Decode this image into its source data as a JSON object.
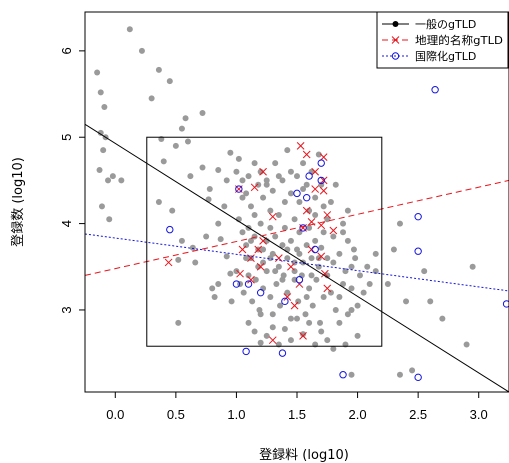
{
  "chart_data": {
    "type": "scatter",
    "title": "",
    "xlabel": "登録料 (log10)",
    "ylabel": "登録数 (log10)",
    "xlim": [
      -0.25,
      3.25
    ],
    "ylim": [
      2.05,
      6.45
    ],
    "x_ticks": [
      0.0,
      0.5,
      1.0,
      1.5,
      2.0,
      2.5,
      3.0
    ],
    "x_tick_labels": [
      "0.0",
      "0.5",
      "1.0",
      "1.5",
      "2.0",
      "2.5",
      "3.0"
    ],
    "y_ticks": [
      3,
      4,
      5,
      6
    ],
    "y_tick_labels": [
      "3",
      "4",
      "5",
      "6"
    ],
    "grid": false,
    "legend_position": "top-right",
    "legend": [
      {
        "label": "一般のgTLD",
        "marker": "filled-circle",
        "line": "solid",
        "color": "#000000"
      },
      {
        "label": "地理的名称gTLD",
        "marker": "x",
        "line": "dashed",
        "color": "#e8141c"
      },
      {
        "label": "国際化gTLD",
        "marker": "open-circle",
        "line": "dotted",
        "color": "#1414e0"
      }
    ],
    "highlight_box": {
      "x": [
        0.26,
        2.2
      ],
      "y": [
        2.58,
        5.0
      ]
    },
    "series": [
      {
        "name": "一般のgTLD",
        "marker": "filled-circle",
        "color": "#9a9a9a",
        "points": [
          [
            -0.15,
            5.75
          ],
          [
            -0.12,
            5.52
          ],
          [
            -0.09,
            5.35
          ],
          [
            -0.12,
            5.05
          ],
          [
            -0.08,
            5.0
          ],
          [
            -0.1,
            4.85
          ],
          [
            -0.13,
            4.62
          ],
          [
            -0.06,
            4.5
          ],
          [
            -0.02,
            4.55
          ],
          [
            0.05,
            4.5
          ],
          [
            -0.11,
            4.2
          ],
          [
            -0.05,
            4.05
          ],
          [
            0.12,
            6.25
          ],
          [
            0.22,
            6.0
          ],
          [
            0.36,
            5.78
          ],
          [
            0.45,
            5.65
          ],
          [
            0.3,
            5.45
          ],
          [
            0.55,
            5.1
          ],
          [
            0.6,
            4.95
          ],
          [
            0.62,
            4.55
          ],
          [
            0.4,
            4.72
          ],
          [
            0.5,
            4.9
          ],
          [
            0.38,
            4.98
          ],
          [
            0.36,
            4.25
          ],
          [
            0.47,
            4.15
          ],
          [
            0.55,
            3.8
          ],
          [
            0.52,
            3.58
          ],
          [
            0.66,
            3.55
          ],
          [
            0.77,
            4.28
          ],
          [
            0.85,
            4.62
          ],
          [
            0.78,
            4.4
          ],
          [
            0.72,
            4.65
          ],
          [
            0.95,
            4.82
          ],
          [
            0.92,
            4.5
          ],
          [
            0.9,
            4.2
          ],
          [
            0.85,
            4.0
          ],
          [
            0.87,
            3.82
          ],
          [
            0.92,
            3.62
          ],
          [
            0.95,
            3.42
          ],
          [
            0.8,
            3.25
          ],
          [
            0.82,
            3.15
          ],
          [
            0.75,
            3.85
          ],
          [
            0.64,
            3.72
          ],
          [
            0.72,
            5.28
          ],
          [
            0.58,
            5.22
          ],
          [
            0.52,
            2.85
          ],
          [
            0.96,
            3.1
          ],
          [
            0.85,
            3.3
          ],
          [
            1.0,
            4.6
          ],
          [
            1.02,
            4.75
          ],
          [
            1.05,
            4.5
          ],
          [
            1.08,
            4.35
          ],
          [
            1.1,
            4.55
          ],
          [
            1.12,
            4.2
          ],
          [
            1.15,
            4.7
          ],
          [
            1.18,
            4.45
          ],
          [
            1.2,
            4.6
          ],
          [
            1.22,
            4.3
          ],
          [
            1.25,
            4.5
          ],
          [
            1.28,
            4.15
          ],
          [
            1.3,
            4.38
          ],
          [
            1.32,
            4.7
          ],
          [
            1.35,
            4.1
          ],
          [
            1.38,
            4.5
          ],
          [
            1.4,
            4.25
          ],
          [
            1.42,
            4.85
          ],
          [
            1.45,
            4.35
          ],
          [
            1.48,
            4.05
          ],
          [
            1.5,
            4.55
          ],
          [
            1.52,
            4.25
          ],
          [
            1.55,
            4.7
          ],
          [
            1.58,
            4.45
          ],
          [
            1.6,
            4.15
          ],
          [
            1.62,
            4.6
          ],
          [
            1.65,
            4.3
          ],
          [
            1.68,
            4.8
          ],
          [
            1.7,
            4.45
          ],
          [
            1.72,
            4.2
          ],
          [
            1.02,
            4.05
          ],
          [
            1.05,
            3.9
          ],
          [
            1.08,
            3.75
          ],
          [
            1.1,
            3.95
          ],
          [
            1.12,
            3.6
          ],
          [
            1.15,
            3.85
          ],
          [
            1.18,
            3.7
          ],
          [
            1.2,
            4.0
          ],
          [
            1.22,
            3.55
          ],
          [
            1.25,
            3.8
          ],
          [
            1.28,
            3.95
          ],
          [
            1.3,
            3.65
          ],
          [
            1.32,
            3.85
          ],
          [
            1.35,
            3.5
          ],
          [
            1.38,
            3.75
          ],
          [
            1.4,
            3.95
          ],
          [
            1.42,
            3.6
          ],
          [
            1.45,
            3.8
          ],
          [
            1.48,
            3.45
          ],
          [
            1.5,
            3.7
          ],
          [
            1.52,
            3.9
          ],
          [
            1.55,
            3.55
          ],
          [
            1.58,
            3.75
          ],
          [
            1.6,
            3.95
          ],
          [
            1.62,
            3.6
          ],
          [
            1.65,
            3.8
          ],
          [
            1.68,
            3.5
          ],
          [
            1.7,
            3.72
          ],
          [
            1.72,
            3.9
          ],
          [
            1.75,
            3.6
          ],
          [
            1.0,
            3.45
          ],
          [
            1.03,
            3.3
          ],
          [
            1.06,
            3.2
          ],
          [
            1.1,
            3.4
          ],
          [
            1.13,
            3.1
          ],
          [
            1.16,
            3.35
          ],
          [
            1.19,
            3.0
          ],
          [
            1.22,
            3.25
          ],
          [
            1.25,
            3.45
          ],
          [
            1.28,
            3.15
          ],
          [
            1.3,
            2.95
          ],
          [
            1.33,
            3.3
          ],
          [
            1.36,
            3.05
          ],
          [
            1.39,
            3.4
          ],
          [
            1.42,
            3.2
          ],
          [
            1.45,
            2.9
          ],
          [
            1.48,
            3.35
          ],
          [
            1.51,
            3.1
          ],
          [
            1.54,
            3.4
          ],
          [
            1.57,
            2.95
          ],
          [
            1.6,
            3.25
          ],
          [
            1.63,
            3.05
          ],
          [
            1.66,
            3.35
          ],
          [
            1.69,
            2.85
          ],
          [
            1.72,
            3.15
          ],
          [
            1.75,
            3.4
          ],
          [
            1.1,
            2.85
          ],
          [
            1.15,
            2.75
          ],
          [
            1.2,
            2.95
          ],
          [
            1.25,
            2.7
          ],
          [
            1.3,
            2.8
          ],
          [
            1.4,
            2.78
          ],
          [
            1.45,
            2.65
          ],
          [
            1.5,
            2.9
          ],
          [
            1.55,
            2.72
          ],
          [
            1.6,
            2.85
          ],
          [
            1.65,
            2.6
          ],
          [
            1.7,
            2.75
          ],
          [
            1.75,
            2.65
          ],
          [
            1.8,
            2.55
          ],
          [
            1.2,
            2.62
          ],
          [
            1.35,
            2.6
          ],
          [
            1.75,
            4.05
          ],
          [
            1.78,
            4.25
          ],
          [
            1.8,
            3.85
          ],
          [
            1.82,
            4.45
          ],
          [
            1.85,
            3.65
          ],
          [
            1.88,
            4.0
          ],
          [
            1.9,
            3.45
          ],
          [
            1.92,
            3.8
          ],
          [
            1.95,
            3.25
          ],
          [
            1.98,
            3.6
          ],
          [
            2.0,
            3.05
          ],
          [
            2.02,
            3.4
          ],
          [
            1.78,
            3.2
          ],
          [
            1.82,
            3.0
          ],
          [
            1.85,
            2.85
          ],
          [
            1.88,
            3.3
          ],
          [
            1.92,
            2.95
          ],
          [
            1.95,
            3.5
          ],
          [
            2.05,
            3.2
          ],
          [
            2.08,
            3.5
          ],
          [
            2.1,
            3.3
          ],
          [
            2.15,
            3.45
          ],
          [
            1.95,
            3.0
          ],
          [
            2.0,
            2.7
          ],
          [
            1.9,
            2.6
          ],
          [
            1.85,
            3.15
          ],
          [
            1.8,
            3.55
          ],
          [
            1.88,
            3.9
          ],
          [
            1.92,
            4.15
          ],
          [
            1.97,
            3.7
          ],
          [
            1.05,
            4.3
          ],
          [
            1.15,
            4.1
          ],
          [
            1.25,
            4.45
          ],
          [
            1.35,
            4.55
          ],
          [
            1.45,
            4.6
          ],
          [
            1.55,
            4.4
          ],
          [
            1.65,
            4.1
          ],
          [
            1.12,
            3.8
          ],
          [
            1.22,
            3.7
          ],
          [
            1.32,
            3.45
          ],
          [
            1.42,
            3.7
          ],
          [
            1.52,
            3.65
          ],
          [
            1.62,
            3.4
          ],
          [
            1.28,
            3.6
          ],
          [
            1.38,
            3.35
          ],
          [
            1.48,
            3.55
          ],
          [
            1.58,
            3.15
          ],
          [
            1.68,
            3.6
          ],
          [
            1.18,
            3.5
          ],
          [
            1.08,
            3.6
          ],
          [
            2.15,
            3.65
          ],
          [
            2.3,
            3.7
          ],
          [
            2.35,
            4.0
          ],
          [
            2.55,
            3.45
          ],
          [
            2.6,
            3.1
          ],
          [
            2.7,
            2.9
          ],
          [
            2.9,
            2.6
          ],
          [
            2.95,
            3.5
          ],
          [
            2.35,
            2.25
          ],
          [
            2.45,
            2.3
          ],
          [
            1.95,
            2.25
          ],
          [
            2.25,
            3.3
          ],
          [
            2.4,
            3.1
          ]
        ]
      },
      {
        "name": "地理的名称gTLD",
        "marker": "x",
        "color": "#e8141c",
        "points": [
          [
            1.53,
            4.9
          ],
          [
            1.58,
            4.8
          ],
          [
            1.72,
            4.77
          ],
          [
            1.65,
            4.6
          ],
          [
            1.72,
            4.5
          ],
          [
            1.22,
            4.6
          ],
          [
            1.65,
            4.4
          ],
          [
            1.72,
            4.38
          ],
          [
            1.02,
            4.4
          ],
          [
            1.15,
            4.42
          ],
          [
            1.3,
            4.08
          ],
          [
            1.58,
            4.15
          ],
          [
            1.62,
            4.02
          ],
          [
            1.55,
            3.95
          ],
          [
            1.75,
            4.1
          ],
          [
            1.7,
            3.98
          ],
          [
            1.8,
            3.92
          ],
          [
            1.05,
            3.7
          ],
          [
            1.18,
            3.7
          ],
          [
            1.12,
            3.6
          ],
          [
            1.2,
            3.5
          ],
          [
            1.35,
            3.6
          ],
          [
            1.45,
            3.5
          ],
          [
            1.62,
            3.7
          ],
          [
            1.7,
            3.62
          ],
          [
            1.03,
            3.42
          ],
          [
            1.12,
            3.35
          ],
          [
            1.42,
            3.15
          ],
          [
            1.48,
            3.05
          ],
          [
            1.55,
            2.7
          ],
          [
            1.3,
            2.65
          ],
          [
            0.44,
            3.55
          ],
          [
            1.73,
            3.42
          ],
          [
            1.22,
            3.8
          ],
          [
            1.52,
            3.3
          ],
          [
            1.75,
            3.25
          ]
        ]
      },
      {
        "name": "国際化gTLD",
        "marker": "open-circle",
        "color": "#1414e0",
        "points": [
          [
            2.64,
            5.55
          ],
          [
            1.7,
            4.7
          ],
          [
            1.6,
            4.55
          ],
          [
            1.7,
            4.5
          ],
          [
            1.5,
            4.35
          ],
          [
            1.58,
            4.3
          ],
          [
            1.02,
            4.4
          ],
          [
            1.55,
            3.95
          ],
          [
            0.45,
            3.93
          ],
          [
            2.5,
            4.08
          ],
          [
            2.5,
            3.68
          ],
          [
            1.65,
            3.7
          ],
          [
            1.52,
            3.35
          ],
          [
            1.1,
            3.3
          ],
          [
            1.0,
            3.3
          ],
          [
            1.2,
            3.2
          ],
          [
            1.4,
            3.1
          ],
          [
            1.08,
            2.52
          ],
          [
            1.38,
            2.5
          ],
          [
            1.88,
            2.25
          ],
          [
            2.5,
            2.22
          ],
          [
            3.23,
            3.07
          ]
        ]
      }
    ],
    "lines": [
      {
        "name": "一般のgTLD",
        "style": "solid",
        "color": "#000000",
        "points": [
          [
            -0.25,
            5.15
          ],
          [
            3.25,
            2.05
          ]
        ]
      },
      {
        "name": "地理的名称gTLD",
        "style": "dashed",
        "color": "#e8141c",
        "points": [
          [
            -0.25,
            3.4
          ],
          [
            3.25,
            4.5
          ]
        ]
      },
      {
        "name": "国際化gTLD",
        "style": "dotted",
        "color": "#1414e0",
        "points": [
          [
            -0.25,
            3.88
          ],
          [
            3.25,
            3.22
          ]
        ]
      }
    ]
  }
}
